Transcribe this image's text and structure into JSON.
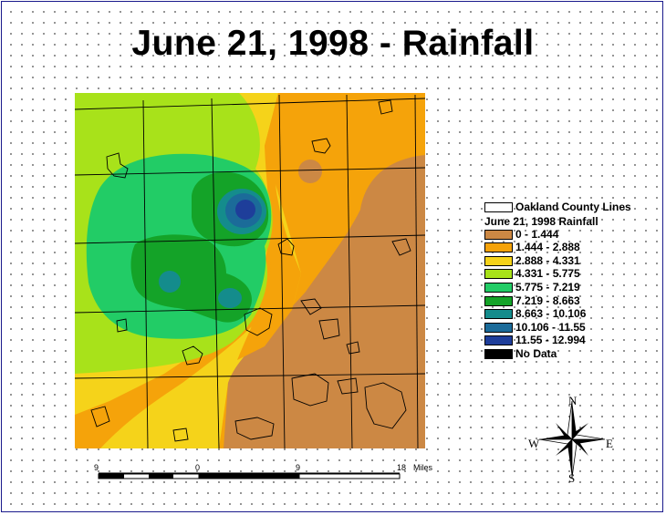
{
  "title": "June 21, 1998 - Rainfall",
  "legend": {
    "county_lines_label": "Oakland County Lines",
    "rainfall_title": "June 21, 1998 Rainfall",
    "classes": [
      {
        "label": "0 - 1.444",
        "color": "#cc8844"
      },
      {
        "label": "1.444 - 2.888",
        "color": "#f5a30a"
      },
      {
        "label": "2.888 - 4.331",
        "color": "#f5d31a"
      },
      {
        "label": "4.331 - 5.775",
        "color": "#a8e21a"
      },
      {
        "label": "5.775 - 7.219",
        "color": "#22cc66"
      },
      {
        "label": "7.219 - 8.663",
        "color": "#14a328"
      },
      {
        "label": "8.663 - 10.106",
        "color": "#148c8c"
      },
      {
        "label": "10.106 - 11.55",
        "color": "#1b6b99"
      },
      {
        "label": "11.55 - 12.994",
        "color": "#1e3e9a"
      },
      {
        "label": "No Data",
        "color": "#000000"
      }
    ]
  },
  "scale_bar": {
    "labels": [
      "9",
      "0",
      "9",
      "18"
    ],
    "unit": "Miles"
  },
  "north_arrow": {
    "n": "N",
    "s": "S",
    "e": "E",
    "w": "W"
  }
}
